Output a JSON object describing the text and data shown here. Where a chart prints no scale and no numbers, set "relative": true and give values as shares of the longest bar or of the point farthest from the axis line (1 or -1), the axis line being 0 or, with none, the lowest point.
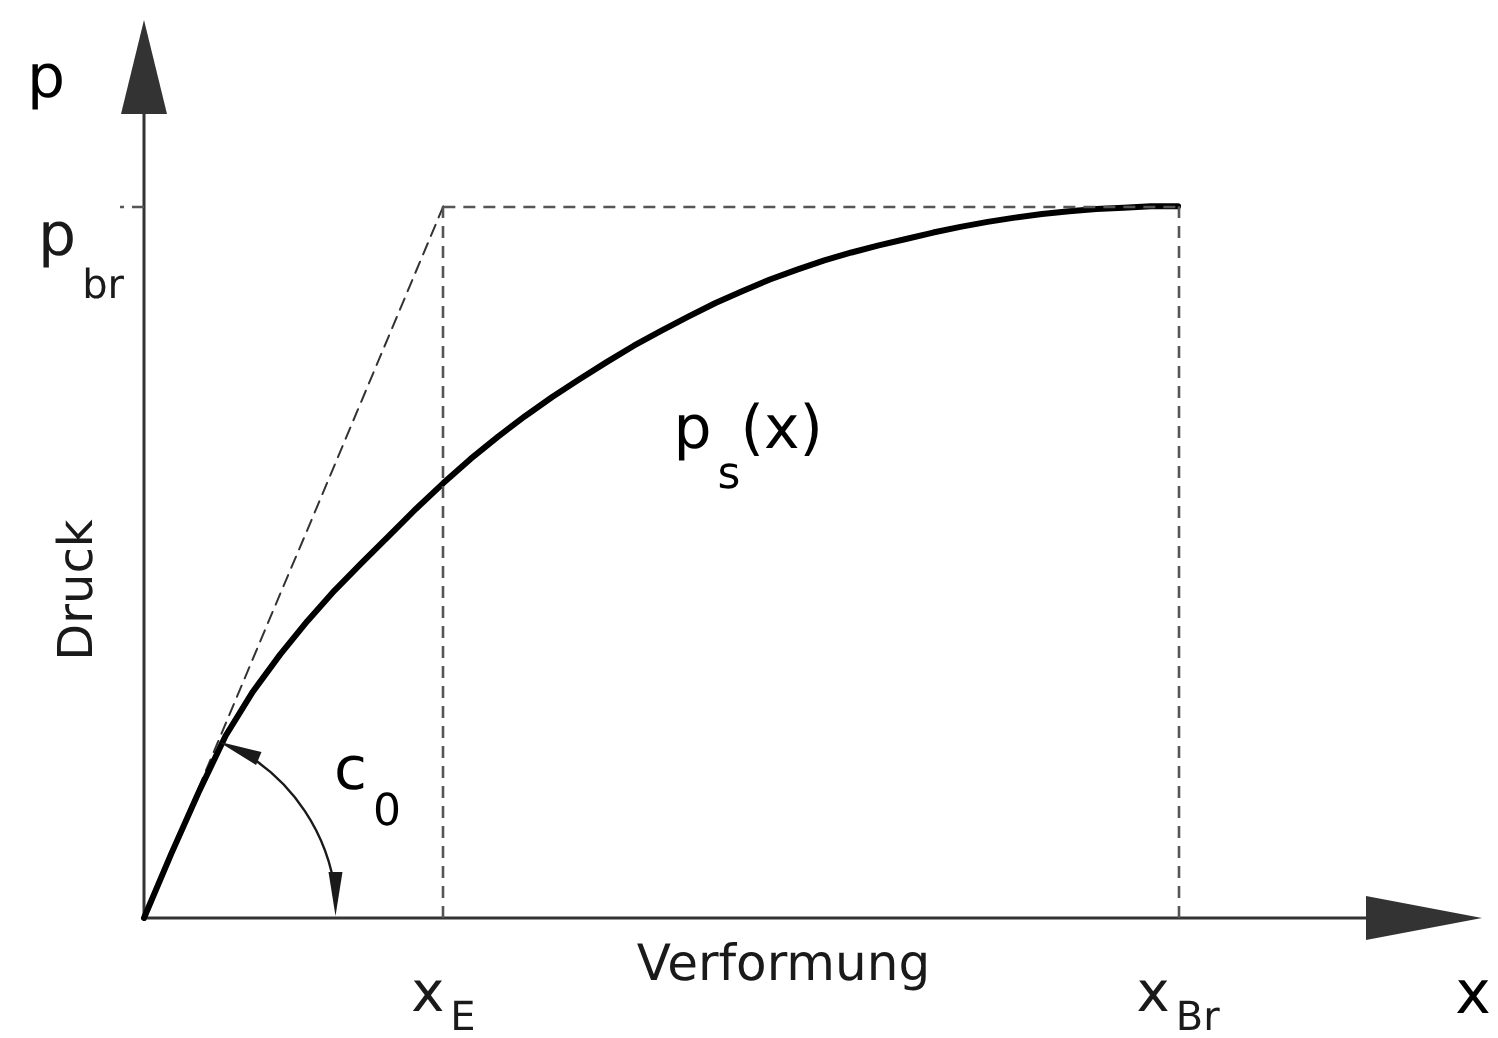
{
  "chart_data": {
    "type": "line",
    "relative": true,
    "xlabel": "Verformung",
    "ylabel": "Druck",
    "categories": [
      null,
      null,
      null,
      null,
      null,
      null,
      null,
      null,
      null,
      null,
      null,
      "x$_{E}$",
      null,
      null,
      null,
      null,
      null,
      null,
      null,
      null,
      null,
      null,
      null,
      null,
      null,
      null,
      null,
      null,
      null,
      null,
      null,
      null,
      null,
      null,
      null,
      null,
      null,
      null,
      "x$_{Br}$"
    ],
    "series": [
      {
        "name": "p$_{s}$(x)",
        "color": "#000000",
        "values": [
          0,
          0.09,
          0.176,
          0.256,
          0.318,
          0.37,
          0.417,
          0.46,
          0.499,
          0.537,
          0.575,
          0.611,
          0.645,
          0.676,
          0.705,
          0.732,
          0.757,
          0.781,
          0.804,
          0.825,
          0.845,
          0.864,
          0.881,
          0.897,
          0.911,
          0.924,
          0.935,
          0.945,
          0.954,
          0.963,
          0.971,
          0.978,
          0.984,
          0.989,
          0.993,
          0.996,
          0.998,
          1,
          1
        ]
      },
      {
        "color": "#333333",
        "line_style": "dashed",
        "values": [
          0,
          0.091,
          0.182,
          0.273,
          0.364,
          0.455,
          0.545,
          0.636,
          0.727,
          0.818,
          0.909,
          1,
          null,
          null,
          null,
          null,
          null,
          null,
          null,
          null,
          null,
          null,
          null,
          null,
          null,
          null,
          null,
          null,
          null,
          null,
          null,
          null,
          null,
          null,
          null,
          null,
          null,
          null,
          null
        ]
      }
    ],
    "ref_lines": [
      {
        "axis": "x",
        "value": "x$_{E}$",
        "color": "#555555",
        "line_style": "dashed"
      },
      {
        "axis": "x",
        "value": "x$_{Br}$",
        "color": "#555555",
        "line_style": "dashed"
      },
      {
        "axis": "y",
        "value": 1,
        "label": "p$_{br}$",
        "color": "#555555",
        "line_style": "dashed"
      }
    ],
    "annotations": [
      "p",
      "x",
      "c$_{0}$"
    ]
  }
}
